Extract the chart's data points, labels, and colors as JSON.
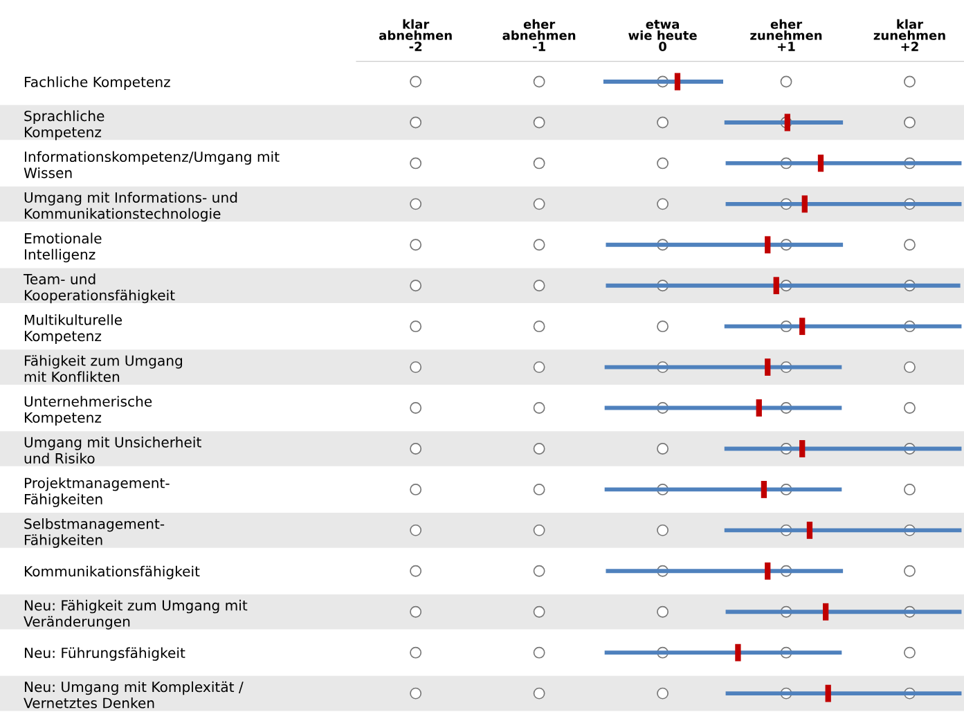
{
  "chart_data": {
    "type": "bar",
    "orientation": "horizontal",
    "categories": [
      "Fachliche Kompetenz",
      "Sprachliche\nKompetenz",
      "Informationskompetenz/Umgang mit\nWissen",
      "Umgang mit Informations- und\nKommunikationstechnologie",
      "Emotionale\nIntelligenz",
      "Team- und\nKooperationsfähigkeit",
      "Multikulturelle\nKompetenz",
      "Fähigkeit zum Umgang\nmit Konflikten",
      "Unternehmerische\nKompetenz",
      "Umgang mit Unsicherheit\nund Risiko",
      "Projektmanagement-\nFähigkeiten",
      "Selbstmanagement-\nFähigkeiten",
      "Kommunikationsfähigkeit",
      "Neu: Fähigkeit zum Umgang mit\nVeränderungen",
      "Neu: Führungsfähigkeit",
      "Neu: Umgang mit Komplexität /\nVernetztes Denken"
    ],
    "xlim": [
      -2.48,
      2.44
    ],
    "xticks": [
      {
        "value": -2,
        "label": "klar\nabnehmen\n-2"
      },
      {
        "value": -1,
        "label": "eher\nabnehmen\n-1"
      },
      {
        "value": 0,
        "label": "etwa\nwie heute\n0"
      },
      {
        "value": 1,
        "label": "eher\nzunehmen\n+1"
      },
      {
        "value": 2,
        "label": "klar\nzunehmen\n+2"
      }
    ],
    "grid": false,
    "series": [
      {
        "color": "#4f81bd",
        "base": [
          -0.48,
          0.5,
          0.51,
          0.51,
          -0.46,
          -0.46,
          0.5,
          -0.47,
          -0.47,
          0.5,
          -0.47,
          0.5,
          -0.46,
          0.51,
          -0.47,
          0.51
        ],
        "values": [
          0.97,
          0.96,
          1.91,
          1.91,
          1.92,
          2.87,
          1.92,
          1.92,
          1.92,
          1.92,
          1.92,
          1.92,
          1.92,
          1.91,
          1.92,
          1.91
        ]
      },
      {
        "type": "scatter",
        "color": "#c00000",
        "values": [
          0.12,
          1.01,
          1.28,
          1.15,
          0.85,
          0.92,
          1.13,
          0.85,
          0.78,
          1.13,
          0.82,
          1.19,
          0.85,
          1.32,
          0.61,
          1.34
        ]
      }
    ]
  }
}
